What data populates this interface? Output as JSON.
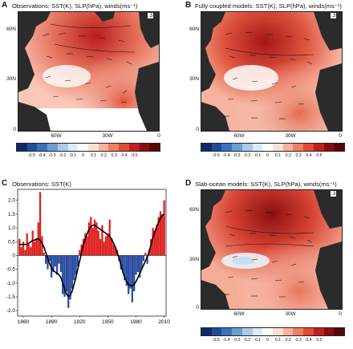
{
  "panels": {
    "A": {
      "label": "A",
      "title": "Observations: SST(K), SLP(hPa), winds(ms⁻¹)",
      "ref": ".3"
    },
    "B": {
      "label": "B",
      "title": "Fully coupled models: SST(K), SLP(hPa), winds(ms⁻¹)",
      "ref": ".3"
    },
    "C": {
      "label": "C",
      "title": "Observations: SST(K)"
    },
    "D": {
      "label": "D",
      "title": "Slab-ocean models: SST(K), SLP(hPa), winds(ms⁻¹)",
      "ref": ".3"
    }
  },
  "map_axes": {
    "lat_labels": [
      "60N",
      "30N",
      "0"
    ],
    "lon_labels": [
      "60W",
      "30W",
      "0"
    ]
  },
  "colorbar": {
    "labels": [
      "-0.5",
      "-0.4",
      "-0.3",
      "-0.2",
      "-0.1",
      "0",
      "0.1",
      "0.2",
      "0.3",
      "0.4",
      "0.5"
    ],
    "colors": [
      "#0d2b6b",
      "#1f4d9a",
      "#3a72b8",
      "#6b9fd3",
      "#a9cbe9",
      "#dcecf7",
      "#ffffff",
      "#fde0d4",
      "#f8b29b",
      "#f07f63",
      "#e04a37",
      "#c0201b",
      "#8b0d10",
      "#5a0406"
    ]
  },
  "chart_data": {
    "type": "bar",
    "title": "Observations: SST(K)",
    "xlabel": "",
    "ylabel": "",
    "x_ticks": [
      "1860",
      "1890",
      "1920",
      "1950",
      "1980",
      "2010"
    ],
    "y_ticks": [
      "2.0",
      "1.5",
      "1.0",
      "0.5",
      "0",
      "-0.5",
      "-1.0",
      "-1.5",
      "-2.0"
    ],
    "ylim": [
      -2.2,
      2.4
    ],
    "xlim": [
      1854,
      2012
    ],
    "positive_color": "#e02020",
    "negative_color": "#2a4ba0",
    "smooth_color": "#000000",
    "years": [
      1856,
      1858,
      1860,
      1862,
      1864,
      1866,
      1868,
      1870,
      1872,
      1874,
      1876,
      1878,
      1880,
      1882,
      1884,
      1886,
      1888,
      1890,
      1892,
      1894,
      1896,
      1898,
      1900,
      1902,
      1904,
      1906,
      1908,
      1910,
      1912,
      1914,
      1916,
      1918,
      1920,
      1922,
      1924,
      1926,
      1928,
      1930,
      1932,
      1934,
      1936,
      1938,
      1940,
      1942,
      1944,
      1946,
      1948,
      1950,
      1952,
      1954,
      1956,
      1958,
      1960,
      1962,
      1964,
      1966,
      1968,
      1970,
      1972,
      1974,
      1976,
      1978,
      1980,
      1982,
      1984,
      1986,
      1988,
      1990,
      1992,
      1994,
      1996,
      1998,
      2000,
      2002,
      2004,
      2006,
      2008,
      2010
    ],
    "values": [
      0.6,
      0.3,
      0.5,
      0.2,
      0.8,
      0.4,
      0.3,
      0.9,
      0.5,
      0.6,
      1.2,
      2.3,
      0.7,
      0.1,
      -0.3,
      -0.5,
      -0.2,
      -0.8,
      -0.6,
      -0.4,
      -0.7,
      -0.3,
      -0.6,
      -1.4,
      -1.5,
      -1.3,
      -1.9,
      -1.6,
      -1.2,
      -0.9,
      -0.7,
      -0.4,
      0.2,
      0.4,
      0.6,
      0.8,
      0.7,
      1.2,
      1.4,
      1.0,
      1.3,
      1.2,
      0.9,
      0.6,
      1.1,
      0.5,
      0.7,
      0.8,
      1.3,
      0.6,
      0.4,
      0.3,
      0.2,
      -0.2,
      -0.5,
      -0.6,
      -0.9,
      -1.1,
      -1.4,
      -1.2,
      -1.7,
      -1.3,
      -0.7,
      -0.6,
      -0.8,
      -0.5,
      -0.2,
      0.1,
      -0.3,
      0.2,
      0.6,
      1.0,
      0.9,
      1.1,
      1.4,
      1.6,
      1.5,
      2.0
    ],
    "smooth": [
      0.4,
      0.4,
      0.4,
      0.4,
      0.4,
      0.45,
      0.5,
      0.55,
      0.55,
      0.6,
      0.6,
      0.55,
      0.45,
      0.3,
      0.1,
      -0.1,
      -0.3,
      -0.45,
      -0.55,
      -0.6,
      -0.65,
      -0.7,
      -0.8,
      -1.0,
      -1.2,
      -1.4,
      -1.5,
      -1.45,
      -1.3,
      -1.05,
      -0.8,
      -0.5,
      -0.2,
      0.1,
      0.4,
      0.6,
      0.8,
      0.95,
      1.05,
      1.1,
      1.1,
      1.05,
      1.0,
      0.95,
      0.9,
      0.85,
      0.8,
      0.75,
      0.7,
      0.6,
      0.45,
      0.3,
      0.1,
      -0.1,
      -0.35,
      -0.6,
      -0.8,
      -0.95,
      -1.05,
      -1.1,
      -1.1,
      -1.05,
      -0.95,
      -0.8,
      -0.65,
      -0.5,
      -0.35,
      -0.2,
      -0.05,
      0.15,
      0.4,
      0.65,
      0.85,
      1.05,
      1.2,
      1.35,
      1.45,
      1.5
    ]
  }
}
